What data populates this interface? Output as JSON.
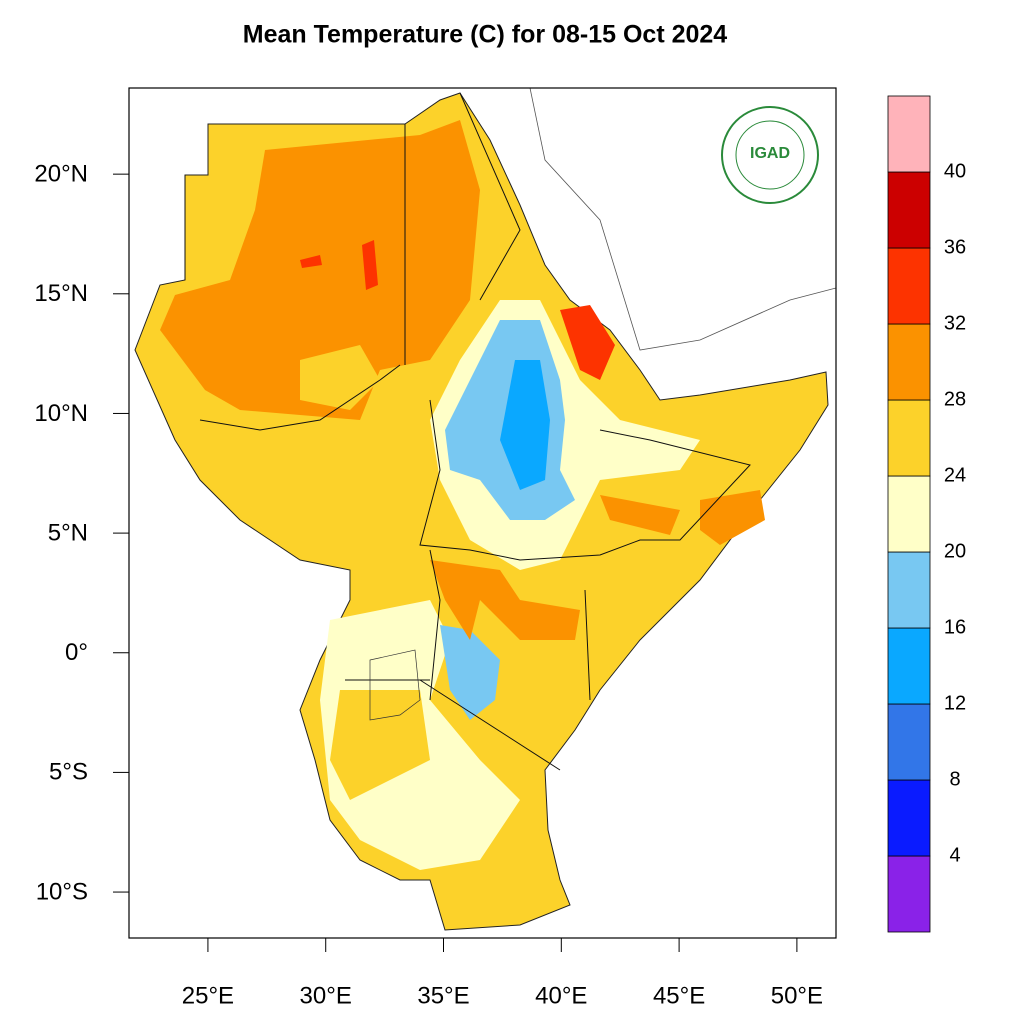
{
  "map": {
    "title": "Mean Temperature (C) for 08-15 Oct 2024",
    "logo": "IGAD",
    "lonlim": [
      21.65,
      51.66
    ],
    "latlim": [
      -11.92,
      23.6
    ],
    "xticks": [
      {
        "value": 25,
        "label": "25°E"
      },
      {
        "value": 30,
        "label": "30°E"
      },
      {
        "value": 35,
        "label": "35°E"
      },
      {
        "value": 40,
        "label": "40°E"
      },
      {
        "value": 45,
        "label": "45°E"
      },
      {
        "value": 50,
        "label": "50°E"
      }
    ],
    "yticks": [
      {
        "value": 20,
        "label": "20°N"
      },
      {
        "value": 15,
        "label": "15°N"
      },
      {
        "value": 10,
        "label": "10°N"
      },
      {
        "value": 5,
        "label": "5°N"
      },
      {
        "value": 0,
        "label": "0°"
      },
      {
        "value": -5,
        "label": "5°S"
      },
      {
        "value": -10,
        "label": "10°S"
      }
    ],
    "colorbar": {
      "levels": [
        4,
        8,
        12,
        16,
        20,
        24,
        28,
        32,
        36,
        40
      ],
      "colors": [
        "#8a22e8",
        "#0a1bff",
        "#3276e8",
        "#0aa8ff",
        "#78c8f2",
        "#ffffc8",
        "#fcd22a",
        "#fb9200",
        "#fd3300",
        "#cc0000",
        "#ffb3ba"
      ]
    }
  }
}
